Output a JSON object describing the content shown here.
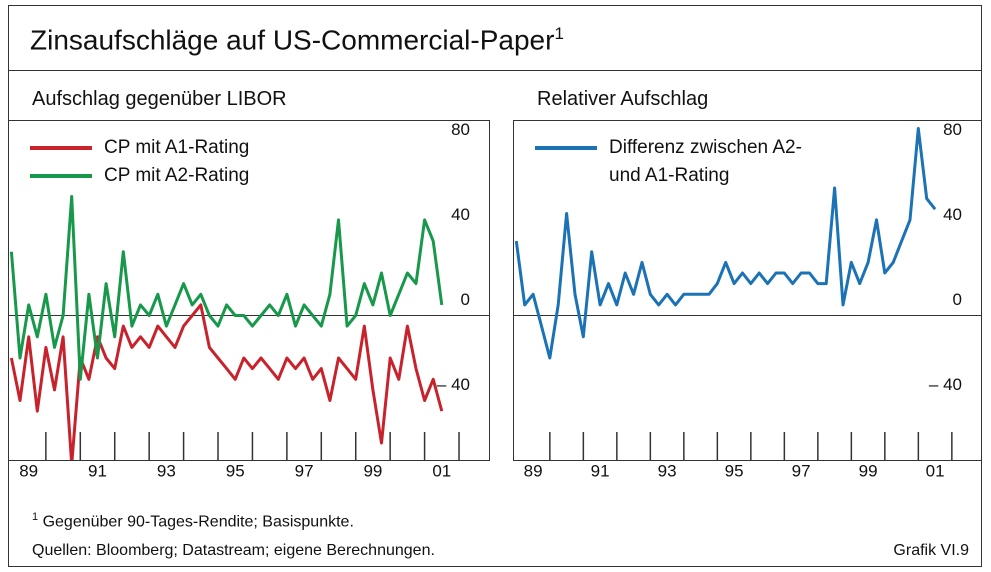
{
  "title": "Zinsaufschläge auf US-Commercial-Paper",
  "title_note": "1",
  "chart_data": [
    {
      "type": "line",
      "subtitle": "Aufschlag gegenüber LIBOR",
      "x": [
        1989.0,
        1989.25,
        1989.5,
        1989.75,
        1990.0,
        1990.25,
        1990.5,
        1990.75,
        1991.0,
        1991.25,
        1991.5,
        1991.75,
        1992.0,
        1992.25,
        1992.5,
        1992.75,
        1993.0,
        1993.25,
        1993.5,
        1993.75,
        1994.0,
        1994.25,
        1994.5,
        1994.75,
        1995.0,
        1995.25,
        1995.5,
        1995.75,
        1996.0,
        1996.25,
        1996.5,
        1996.75,
        1997.0,
        1997.25,
        1997.5,
        1997.75,
        1998.0,
        1998.25,
        1998.5,
        1998.75,
        1999.0,
        1999.25,
        1999.5,
        1999.75,
        2000.0,
        2000.25,
        2000.5,
        2000.75,
        2001.0,
        2001.25,
        2001.5
      ],
      "series": [
        {
          "name": "CP mit A1-Rating",
          "color": "#c8232c",
          "values": [
            -20,
            -40,
            -10,
            -45,
            -15,
            -35,
            -10,
            -70,
            -20,
            -30,
            -10,
            -20,
            -25,
            -5,
            -15,
            -10,
            -15,
            -5,
            -10,
            -15,
            -5,
            0,
            5,
            -15,
            -20,
            -25,
            -30,
            -20,
            -25,
            -20,
            -25,
            -30,
            -20,
            -25,
            -20,
            -30,
            -25,
            -40,
            -20,
            -25,
            -30,
            -5,
            -35,
            -60,
            -20,
            -30,
            -5,
            -25,
            -40,
            -30,
            -45
          ]
        },
        {
          "name": "CP mit A2-Rating",
          "color": "#17984a",
          "values": [
            30,
            -20,
            5,
            -10,
            10,
            -15,
            0,
            56,
            -30,
            10,
            -20,
            15,
            -10,
            30,
            -5,
            5,
            0,
            10,
            -5,
            5,
            15,
            5,
            10,
            0,
            -5,
            5,
            0,
            0,
            -5,
            0,
            5,
            0,
            10,
            -5,
            5,
            0,
            -5,
            10,
            45,
            -5,
            0,
            15,
            5,
            20,
            0,
            10,
            20,
            15,
            45,
            35,
            5
          ]
        }
      ],
      "xlim": [
        1988.9,
        2002.9
      ],
      "ylim": [
        -68,
        92
      ],
      "yticks": [
        {
          "value": -40,
          "label": "– 40"
        },
        0,
        40,
        80
      ],
      "xticks": [
        {
          "value": 1989.5,
          "label": "89"
        },
        {
          "value": 1991.5,
          "label": "91"
        },
        {
          "value": 1993.5,
          "label": "93"
        },
        {
          "value": 1995.5,
          "label": "95"
        },
        {
          "value": 1997.5,
          "label": "97"
        },
        {
          "value": 1999.5,
          "label": "99"
        },
        {
          "value": 2001.5,
          "label": "01"
        }
      ],
      "xtick_marks": [
        1990,
        1991,
        1992,
        1993,
        1994,
        1995,
        1996,
        1997,
        1998,
        1999,
        2000,
        2001,
        2002
      ],
      "legend": "top-left"
    },
    {
      "type": "line",
      "subtitle": "Relativer Aufschlag",
      "x": [
        1989.0,
        1989.25,
        1989.5,
        1989.75,
        1990.0,
        1990.25,
        1990.5,
        1990.75,
        1991.0,
        1991.25,
        1991.5,
        1991.75,
        1992.0,
        1992.25,
        1992.5,
        1992.75,
        1993.0,
        1993.25,
        1993.5,
        1993.75,
        1994.0,
        1994.25,
        1994.5,
        1994.75,
        1995.0,
        1995.25,
        1995.5,
        1995.75,
        1996.0,
        1996.25,
        1996.5,
        1996.75,
        1997.0,
        1997.25,
        1997.5,
        1997.75,
        1998.0,
        1998.25,
        1998.5,
        1998.75,
        1999.0,
        1999.25,
        1999.5,
        1999.75,
        2000.0,
        2000.25,
        2000.5,
        2000.75,
        2001.0,
        2001.25,
        2001.5
      ],
      "series": [
        {
          "name": "Differenz zwischen A2- und A1-Rating",
          "color": "#1b72b5",
          "values": [
            35,
            5,
            10,
            -5,
            -20,
            5,
            48,
            10,
            -10,
            30,
            5,
            15,
            5,
            20,
            10,
            25,
            10,
            5,
            10,
            5,
            10,
            10,
            10,
            10,
            15,
            25,
            15,
            20,
            15,
            20,
            15,
            20,
            20,
            15,
            20,
            20,
            15,
            15,
            60,
            5,
            25,
            15,
            25,
            45,
            20,
            25,
            35,
            45,
            88,
            55,
            50
          ]
        }
      ],
      "xlim": [
        1988.9,
        2002.9
      ],
      "ylim": [
        -68,
        92
      ],
      "yticks": [
        {
          "value": -40,
          "label": "– 40"
        },
        0,
        40,
        80
      ],
      "xticks": [
        {
          "value": 1989.5,
          "label": "89"
        },
        {
          "value": 1991.5,
          "label": "91"
        },
        {
          "value": 1993.5,
          "label": "93"
        },
        {
          "value": 1995.5,
          "label": "95"
        },
        {
          "value": 1997.5,
          "label": "97"
        },
        {
          "value": 1999.5,
          "label": "99"
        },
        {
          "value": 2001.5,
          "label": "01"
        }
      ],
      "xtick_marks": [
        1990,
        1991,
        1992,
        1993,
        1994,
        1995,
        1996,
        1997,
        1998,
        1999,
        2000,
        2001,
        2002
      ],
      "legend": "top-left"
    }
  ],
  "footnote": {
    "marker": "1",
    "text": "Gegenüber 90-Tages-Rendite; Basispunkte."
  },
  "source": "Quellen: Bloomberg; Datastream; eigene Berechnungen.",
  "figure_label": "Grafik VI.9"
}
